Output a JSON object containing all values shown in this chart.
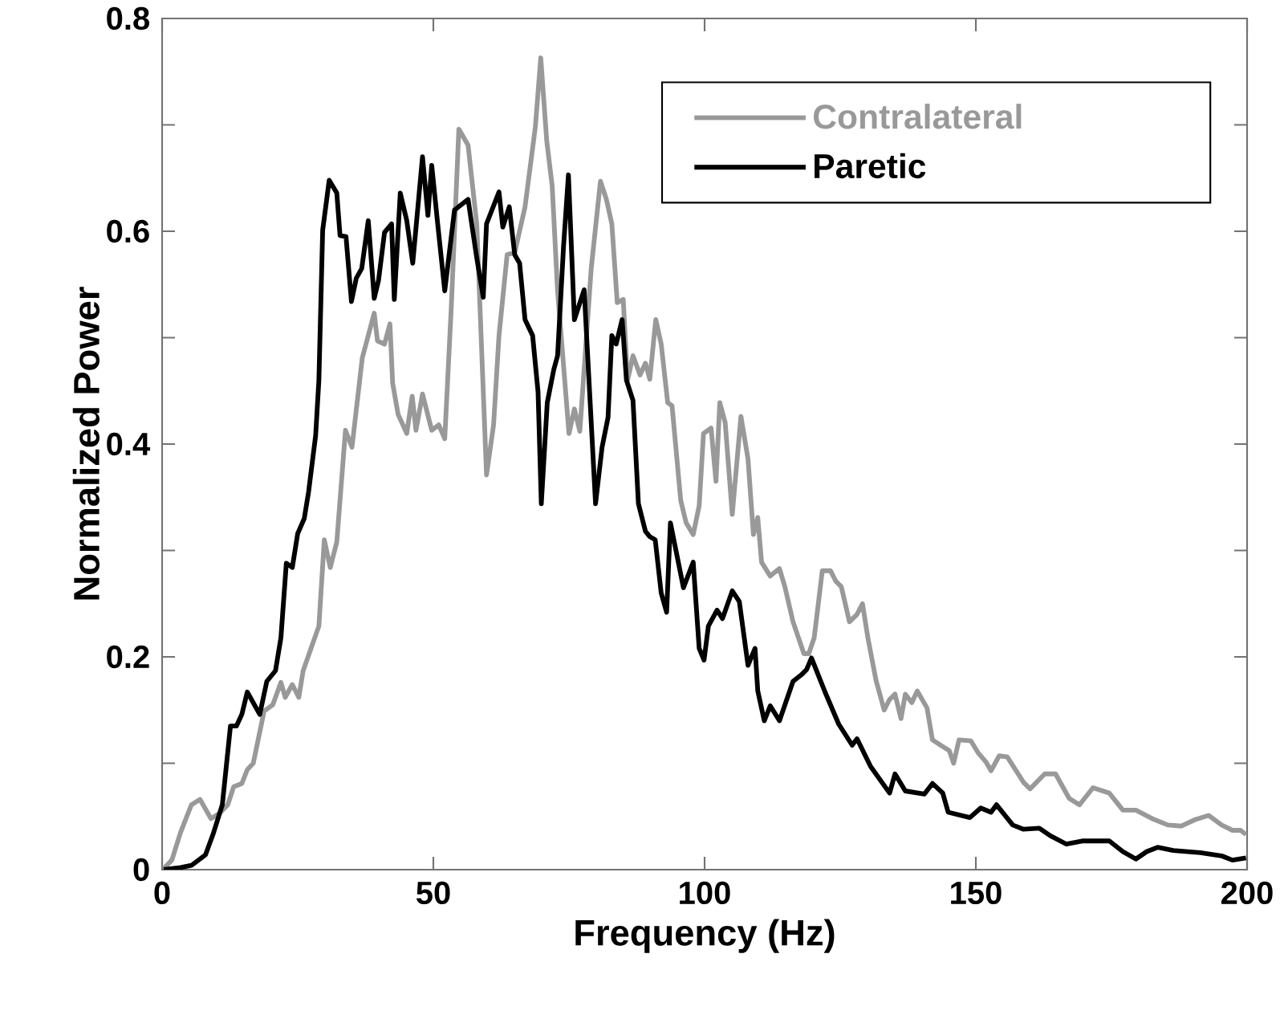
{
  "chart_data": {
    "type": "line",
    "xlabel": "Frequency (Hz)",
    "ylabel": "Normalized Power",
    "xlim": [
      0,
      200
    ],
    "ylim": [
      0,
      0.8
    ],
    "xticks": [
      0,
      50,
      100,
      150,
      200
    ],
    "yticks": [
      0,
      {
        "value": 0.1,
        "label": null
      },
      0.2,
      {
        "value": 0.3,
        "label": null
      },
      0.4,
      {
        "value": 0.5,
        "label": null
      },
      0.6,
      {
        "value": 0.7,
        "label": null
      },
      0.8
    ],
    "legend": "top right",
    "line_style": "solid",
    "series": [
      {
        "name": "Contralateral",
        "color": "#999999",
        "x": [
          0.3,
          1.8,
          3.4,
          5.4,
          7,
          9,
          10.6,
          12.1,
          13.2,
          14.7,
          15.7,
          16.8,
          18.8,
          20.4,
          21.9,
          22.7,
          24,
          25.2,
          26,
          28.9,
          29.9,
          31,
          32.2,
          33.8,
          35,
          36.9,
          39.1,
          39.7,
          41,
          42,
          42.5,
          43.5,
          45.1,
          46.1,
          46.8,
          48,
          49.7,
          51,
          52.1,
          53.3,
          54.7,
          56.4,
          58,
          59.8,
          61.1,
          62.1,
          63.6,
          65,
          66.9,
          68.8,
          69.8,
          70.9,
          71.9,
          72.9,
          75,
          76,
          77,
          79.1,
          80.8,
          81.9,
          82.9,
          83.9,
          85,
          85.8,
          86.8,
          88.1,
          89.1,
          89.9,
          91,
          92,
          93.2,
          94,
          95.6,
          96.6,
          97.9,
          99,
          99.8,
          101.2,
          102.1,
          102.8,
          103.8,
          105.1,
          106.7,
          108,
          109,
          109.8,
          110.5,
          112.1,
          113.8,
          114.8,
          116.3,
          118.3,
          119.2,
          120.2,
          121.7,
          123.2,
          124.2,
          125.2,
          126.7,
          128.1,
          129.1,
          130.1,
          131.6,
          133.1,
          134.1,
          135.1,
          136.2,
          137,
          138.2,
          139.2,
          141,
          142,
          143.5,
          145.1,
          145.9,
          146.9,
          149.1,
          150.4,
          151.9,
          152.8,
          154.3,
          155.8,
          158.8,
          160,
          162.7,
          164.7,
          167.2,
          169.1,
          171.6,
          174.6,
          177.1,
          179.5,
          182.5,
          185.4,
          187.9,
          190.4,
          192.9,
          195.3,
          197.3,
          198.8,
          199.8
        ],
        "values": [
          0.001,
          0.009,
          0.035,
          0.061,
          0.066,
          0.048,
          0.053,
          0.061,
          0.078,
          0.081,
          0.094,
          0.1,
          0.149,
          0.155,
          0.176,
          0.162,
          0.174,
          0.162,
          0.187,
          0.229,
          0.31,
          0.284,
          0.308,
          0.413,
          0.397,
          0.481,
          0.523,
          0.497,
          0.494,
          0.513,
          0.457,
          0.428,
          0.41,
          0.445,
          0.413,
          0.447,
          0.413,
          0.418,
          0.405,
          0.528,
          0.696,
          0.681,
          0.607,
          0.371,
          0.418,
          0.502,
          0.578,
          0.58,
          0.623,
          0.698,
          0.763,
          0.685,
          0.643,
          0.544,
          0.41,
          0.433,
          0.412,
          0.565,
          0.647,
          0.63,
          0.607,
          0.533,
          0.536,
          0.46,
          0.483,
          0.465,
          0.476,
          0.461,
          0.517,
          0.494,
          0.439,
          0.436,
          0.347,
          0.326,
          0.315,
          0.342,
          0.41,
          0.415,
          0.365,
          0.439,
          0.42,
          0.334,
          0.426,
          0.386,
          0.315,
          0.331,
          0.289,
          0.276,
          0.283,
          0.266,
          0.233,
          0.203,
          0.203,
          0.218,
          0.281,
          0.281,
          0.271,
          0.266,
          0.233,
          0.24,
          0.25,
          0.218,
          0.178,
          0.15,
          0.16,
          0.165,
          0.142,
          0.165,
          0.157,
          0.168,
          0.152,
          0.122,
          0.117,
          0.112,
          0.1,
          0.122,
          0.121,
          0.11,
          0.101,
          0.093,
          0.107,
          0.106,
          0.082,
          0.076,
          0.09,
          0.09,
          0.067,
          0.061,
          0.077,
          0.072,
          0.056,
          0.056,
          0.048,
          0.042,
          0.041,
          0.047,
          0.051,
          0.042,
          0.037,
          0.037,
          0.033
        ]
      },
      {
        "name": "Paretic",
        "color": "#000000",
        "x": [
          0.3,
          3.4,
          5.4,
          8,
          9.5,
          11.1,
          12.6,
          13.7,
          14.7,
          15.7,
          18,
          19.3,
          20.9,
          21.9,
          22.9,
          24,
          25,
          26.2,
          27,
          28.3,
          28.9,
          29.6,
          30.8,
          32.2,
          32.8,
          33.9,
          34.9,
          35.8,
          36.8,
          38,
          39.1,
          39.9,
          41,
          42.3,
          42.8,
          43.9,
          45.1,
          46.2,
          48,
          49,
          49.7,
          50.8,
          52.1,
          53.9,
          56.4,
          58,
          59.2,
          59.8,
          62.1,
          62.8,
          64,
          65,
          65.9,
          66.9,
          68.3,
          69.3,
          69.9,
          71,
          72.2,
          72.9,
          74,
          74.9,
          76,
          77.8,
          79.9,
          81.1,
          82.2,
          82.9,
          83.7,
          84.8,
          85.6,
          86.8,
          87.8,
          89.1,
          89.9,
          90.9,
          92,
          93,
          93.7,
          96.1,
          97.9,
          99,
          99.9,
          100.7,
          102.3,
          103.3,
          105.1,
          106.4,
          108,
          109.3,
          109.8,
          111,
          112.1,
          113.8,
          116.3,
          117.8,
          118.8,
          119.7,
          122.2,
          124.7,
          127.2,
          128.1,
          130.6,
          134.1,
          135.1,
          137,
          140.5,
          142,
          143.9,
          144.9,
          148.9,
          150.9,
          152.8,
          153.8,
          156.8,
          158.8,
          161.7,
          163.7,
          166.7,
          169.6,
          174.6,
          177.1,
          179.5,
          181.5,
          183.5,
          186.4,
          191.4,
          195.3,
          197.3,
          199.8
        ],
        "values": [
          0,
          0.002,
          0.004,
          0.014,
          0.035,
          0.061,
          0.135,
          0.135,
          0.146,
          0.167,
          0.146,
          0.177,
          0.187,
          0.218,
          0.288,
          0.284,
          0.316,
          0.33,
          0.355,
          0.408,
          0.46,
          0.601,
          0.648,
          0.636,
          0.596,
          0.595,
          0.534,
          0.556,
          0.565,
          0.61,
          0.537,
          0.554,
          0.599,
          0.607,
          0.536,
          0.636,
          0.61,
          0.57,
          0.67,
          0.615,
          0.662,
          0.607,
          0.544,
          0.62,
          0.63,
          0.575,
          0.538,
          0.607,
          0.637,
          0.604,
          0.623,
          0.578,
          0.57,
          0.517,
          0.502,
          0.449,
          0.344,
          0.439,
          0.47,
          0.483,
          0.586,
          0.653,
          0.517,
          0.545,
          0.344,
          0.397,
          0.425,
          0.502,
          0.494,
          0.517,
          0.46,
          0.441,
          0.344,
          0.318,
          0.313,
          0.31,
          0.26,
          0.242,
          0.326,
          0.265,
          0.289,
          0.208,
          0.197,
          0.229,
          0.244,
          0.236,
          0.262,
          0.252,
          0.192,
          0.208,
          0.168,
          0.14,
          0.154,
          0.14,
          0.177,
          0.183,
          0.188,
          0.199,
          0.167,
          0.137,
          0.117,
          0.123,
          0.097,
          0.072,
          0.09,
          0.074,
          0.071,
          0.081,
          0.072,
          0.054,
          0.049,
          0.058,
          0.054,
          0.061,
          0.042,
          0.038,
          0.039,
          0.032,
          0.024,
          0.027,
          0.027,
          0.017,
          0.01,
          0.017,
          0.021,
          0.018,
          0.016,
          0.013,
          0.009,
          0.011
        ]
      }
    ]
  }
}
